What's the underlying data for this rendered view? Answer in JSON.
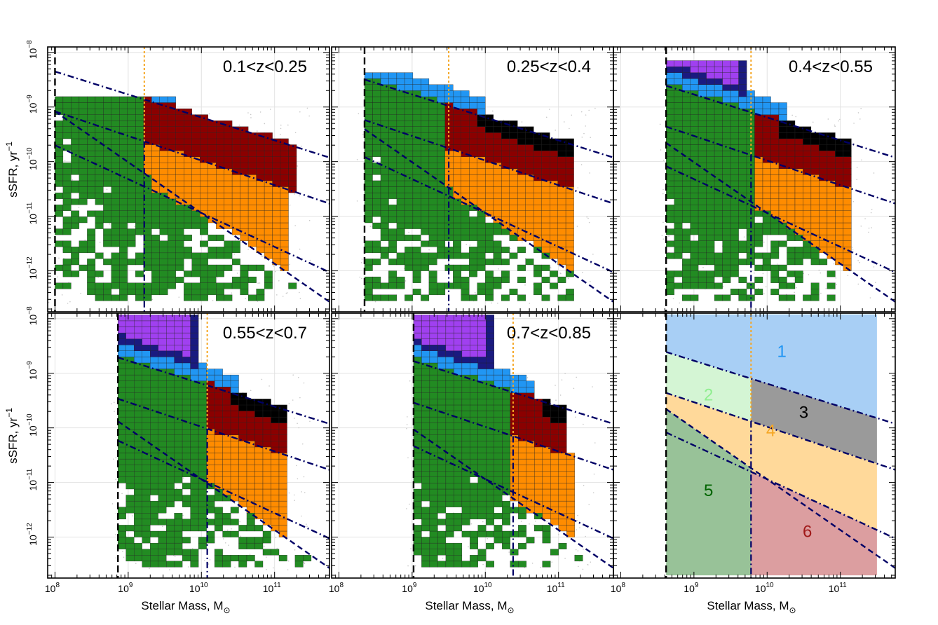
{
  "figure": {
    "xlabel": "Stellar Mass, M",
    "xlabel_sub": "⊙",
    "ylabel": "sSFR, yr",
    "ylabel_sup": "−1",
    "xticks": [
      {
        "base": "10",
        "exp": "8"
      },
      {
        "base": "10",
        "exp": "9"
      },
      {
        "base": "10",
        "exp": "10"
      },
      {
        "base": "10",
        "exp": "11"
      }
    ],
    "yticks": [
      {
        "base": "10",
        "exp": "−8"
      },
      {
        "base": "10",
        "exp": "−9"
      },
      {
        "base": "10",
        "exp": "−10"
      },
      {
        "base": "10",
        "exp": "−11"
      },
      {
        "base": "10",
        "exp": "−12"
      }
    ]
  },
  "colors": {
    "c1": "#2196f3",
    "c2": "#1a1a80",
    "c3": "#000000",
    "c4": "#ff8c00",
    "c5": "#228b22",
    "c6": "#8b0000",
    "c7": "#a040f0",
    "orange_line": "#f5a623",
    "dash_line": "#000066",
    "points": "#c8c8c8"
  },
  "chart_data": {
    "type": "heatmap",
    "x_scale": "log",
    "y_scale": "log",
    "xlim_log": [
      7.9,
      11.75
    ],
    "ylim_log": [
      -12.75,
      -7.9
    ],
    "panels": [
      {
        "label": "0.1<z<0.25",
        "mass_limit_log": 8.0,
        "ssfr_top_log": -8.85,
        "split_log": 9.22,
        "region3_top_log": -9.98,
        "has_purple": false,
        "has_black": false
      },
      {
        "label": "0.25<z<0.4",
        "mass_limit_log": 8.35,
        "ssfr_top_log": -8.45,
        "split_log": 9.5,
        "region3_top_log": -9.45,
        "has_purple": false,
        "has_black": true
      },
      {
        "label": "0.4<z<0.55",
        "mass_limit_log": 8.62,
        "ssfr_top_log": -8.25,
        "split_log": 9.78,
        "region3_top_log": -9.6,
        "has_purple": true,
        "has_black": true
      },
      {
        "label": "0.55<z<0.7",
        "mass_limit_log": 8.86,
        "ssfr_top_log": -8.0,
        "split_log": 10.08,
        "region3_top_log": -9.55,
        "has_purple": true,
        "has_black": true
      },
      {
        "label": "0.7<z<0.85",
        "mass_limit_log": 9.02,
        "ssfr_top_log": -8.0,
        "split_log": 10.38,
        "region3_top_log": -9.6,
        "has_purple": true,
        "has_black": true
      }
    ],
    "schematic": {
      "mass_limit_log": 8.62,
      "split_log": 9.78,
      "regions": [
        {
          "id": "1",
          "fill": "#a8cff5",
          "text": "#2196f3"
        },
        {
          "id": "2",
          "fill": "#d4f5d4",
          "text": "#90ee90"
        },
        {
          "id": "3",
          "fill": "#9a9a9a",
          "text": "#000000"
        },
        {
          "id": "4",
          "fill": "#ffd99a",
          "text": "#f5a623"
        },
        {
          "id": "5",
          "fill": "#98c298",
          "text": "#006400"
        },
        {
          "id": "6",
          "fill": "#dc9ea0",
          "text": "#a01818"
        }
      ]
    }
  }
}
